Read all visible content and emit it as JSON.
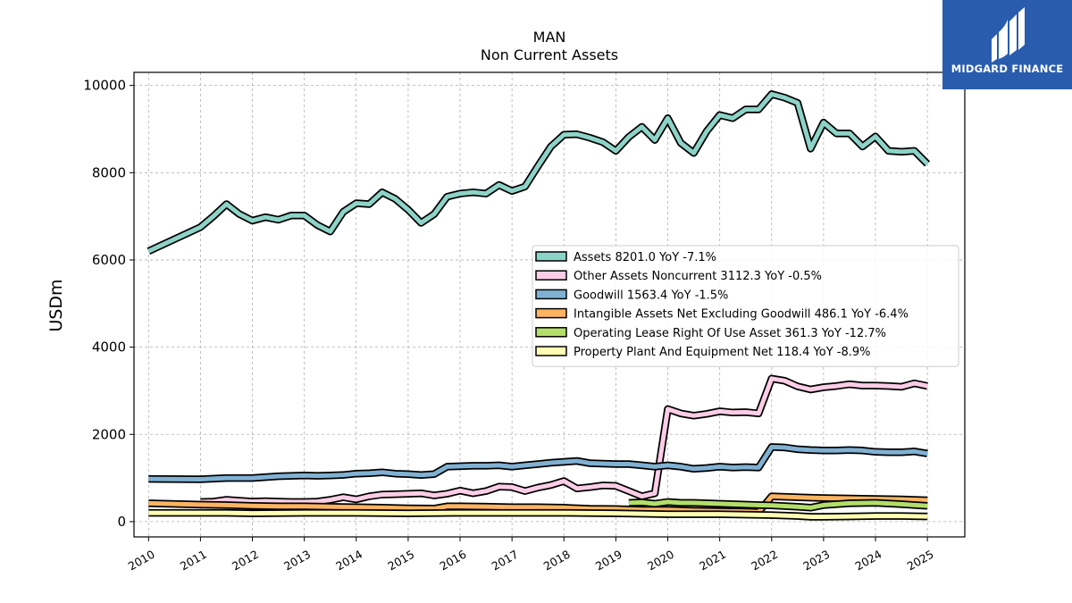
{
  "chart_data": {
    "type": "line",
    "title": "MAN",
    "subtitle": "Non Current  Assets",
    "xlabel": "",
    "ylabel": "USDm",
    "xlim": [
      2009.72,
      2025.72
    ],
    "ylim": [
      -350,
      10300
    ],
    "x_ticks": [
      "2010",
      "2011",
      "2012",
      "2013",
      "2014",
      "2015",
      "2016",
      "2017",
      "2018",
      "2019",
      "2020",
      "2021",
      "2022",
      "2023",
      "2024",
      "2025"
    ],
    "y_ticks": [
      0,
      2000,
      4000,
      6000,
      8000,
      10000
    ],
    "y_tick_labels": [
      "0",
      "2000",
      "4000",
      "6000",
      "8000",
      "10000"
    ],
    "grid": true,
    "legend_position": "center-right",
    "series": [
      {
        "name": "Assets  8201.0 YoY -7.1%",
        "color": "#8dd3c7",
        "points": [
          [
            2010.0,
            6200
          ],
          [
            2011.0,
            6750
          ],
          [
            2011.25,
            7000
          ],
          [
            2011.5,
            7280
          ],
          [
            2011.75,
            7050
          ],
          [
            2012.0,
            6900
          ],
          [
            2012.25,
            6980
          ],
          [
            2012.5,
            6920
          ],
          [
            2012.75,
            7020
          ],
          [
            2013.0,
            7020
          ],
          [
            2013.25,
            6800
          ],
          [
            2013.5,
            6650
          ],
          [
            2013.75,
            7100
          ],
          [
            2014.0,
            7300
          ],
          [
            2014.25,
            7280
          ],
          [
            2014.5,
            7550
          ],
          [
            2014.75,
            7400
          ],
          [
            2015.0,
            7150
          ],
          [
            2015.25,
            6850
          ],
          [
            2015.5,
            7050
          ],
          [
            2015.75,
            7450
          ],
          [
            2016.0,
            7520
          ],
          [
            2016.25,
            7550
          ],
          [
            2016.5,
            7520
          ],
          [
            2016.75,
            7720
          ],
          [
            2017.0,
            7580
          ],
          [
            2017.25,
            7680
          ],
          [
            2017.5,
            8150
          ],
          [
            2017.75,
            8600
          ],
          [
            2018.0,
            8870
          ],
          [
            2018.25,
            8880
          ],
          [
            2018.5,
            8800
          ],
          [
            2018.75,
            8700
          ],
          [
            2019.0,
            8500
          ],
          [
            2019.25,
            8820
          ],
          [
            2019.5,
            9050
          ],
          [
            2019.75,
            8750
          ],
          [
            2020.0,
            9250
          ],
          [
            2020.25,
            8680
          ],
          [
            2020.5,
            8450
          ],
          [
            2020.75,
            8950
          ],
          [
            2021.0,
            9320
          ],
          [
            2021.25,
            9250
          ],
          [
            2021.5,
            9450
          ],
          [
            2021.75,
            9450
          ],
          [
            2022.0,
            9800
          ],
          [
            2022.25,
            9720
          ],
          [
            2022.5,
            9600
          ],
          [
            2022.75,
            8550
          ],
          [
            2023.0,
            9150
          ],
          [
            2023.25,
            8900
          ],
          [
            2023.5,
            8900
          ],
          [
            2023.75,
            8600
          ],
          [
            2024.0,
            8830
          ],
          [
            2024.25,
            8500
          ],
          [
            2024.5,
            8480
          ],
          [
            2024.75,
            8500
          ],
          [
            2025.0,
            8200
          ]
        ]
      },
      {
        "name": "Other Assets Noncurrent  3112.3 YoY -0.5%",
        "color": "#fccde5",
        "points": [
          [
            2011.0,
            450
          ],
          [
            2011.25,
            460
          ],
          [
            2011.5,
            500
          ],
          [
            2011.75,
            480
          ],
          [
            2012.0,
            460
          ],
          [
            2012.25,
            470
          ],
          [
            2012.5,
            460
          ],
          [
            2012.75,
            450
          ],
          [
            2013.0,
            450
          ],
          [
            2013.25,
            460
          ],
          [
            2013.5,
            500
          ],
          [
            2013.75,
            560
          ],
          [
            2014.0,
            510
          ],
          [
            2014.25,
            580
          ],
          [
            2014.5,
            620
          ],
          [
            2014.75,
            630
          ],
          [
            2015.0,
            640
          ],
          [
            2015.25,
            650
          ],
          [
            2015.5,
            600
          ],
          [
            2015.75,
            640
          ],
          [
            2016.0,
            710
          ],
          [
            2016.25,
            650
          ],
          [
            2016.5,
            700
          ],
          [
            2016.75,
            800
          ],
          [
            2017.0,
            790
          ],
          [
            2017.25,
            700
          ],
          [
            2017.5,
            780
          ],
          [
            2017.75,
            840
          ],
          [
            2018.0,
            930
          ],
          [
            2018.25,
            760
          ],
          [
            2018.5,
            790
          ],
          [
            2018.75,
            830
          ],
          [
            2019.0,
            820
          ],
          [
            2019.25,
            700
          ],
          [
            2019.5,
            580
          ],
          [
            2019.75,
            650
          ],
          [
            2020.0,
            2580
          ],
          [
            2020.25,
            2480
          ],
          [
            2020.5,
            2430
          ],
          [
            2020.75,
            2470
          ],
          [
            2021.0,
            2530
          ],
          [
            2021.25,
            2500
          ],
          [
            2021.5,
            2510
          ],
          [
            2021.75,
            2480
          ],
          [
            2022.0,
            3280
          ],
          [
            2022.25,
            3230
          ],
          [
            2022.5,
            3100
          ],
          [
            2022.75,
            3030
          ],
          [
            2023.0,
            3080
          ],
          [
            2023.25,
            3110
          ],
          [
            2023.5,
            3150
          ],
          [
            2023.75,
            3120
          ],
          [
            2024.0,
            3120
          ],
          [
            2024.25,
            3110
          ],
          [
            2024.5,
            3090
          ],
          [
            2024.75,
            3170
          ],
          [
            2025.0,
            3110
          ]
        ]
      },
      {
        "name": "Goodwill  1563.4 YoY -1.5%",
        "color": "#80b1d3",
        "points": [
          [
            2010.0,
            980
          ],
          [
            2011.0,
            970
          ],
          [
            2011.5,
            1000
          ],
          [
            2012.0,
            1000
          ],
          [
            2012.5,
            1040
          ],
          [
            2013.0,
            1060
          ],
          [
            2013.25,
            1050
          ],
          [
            2013.5,
            1060
          ],
          [
            2013.75,
            1070
          ],
          [
            2014.0,
            1100
          ],
          [
            2014.25,
            1110
          ],
          [
            2014.5,
            1130
          ],
          [
            2014.75,
            1100
          ],
          [
            2015.0,
            1090
          ],
          [
            2015.25,
            1070
          ],
          [
            2015.5,
            1090
          ],
          [
            2015.75,
            1260
          ],
          [
            2016.0,
            1270
          ],
          [
            2016.25,
            1280
          ],
          [
            2016.5,
            1280
          ],
          [
            2016.75,
            1290
          ],
          [
            2017.0,
            1260
          ],
          [
            2017.25,
            1290
          ],
          [
            2017.5,
            1320
          ],
          [
            2017.75,
            1350
          ],
          [
            2018.0,
            1370
          ],
          [
            2018.25,
            1390
          ],
          [
            2018.5,
            1340
          ],
          [
            2018.75,
            1330
          ],
          [
            2019.0,
            1320
          ],
          [
            2019.25,
            1320
          ],
          [
            2019.5,
            1290
          ],
          [
            2019.75,
            1260
          ],
          [
            2020.0,
            1290
          ],
          [
            2020.25,
            1260
          ],
          [
            2020.5,
            1210
          ],
          [
            2020.75,
            1230
          ],
          [
            2021.0,
            1260
          ],
          [
            2021.25,
            1240
          ],
          [
            2021.5,
            1250
          ],
          [
            2021.75,
            1240
          ],
          [
            2022.0,
            1710
          ],
          [
            2022.25,
            1700
          ],
          [
            2022.5,
            1660
          ],
          [
            2022.75,
            1640
          ],
          [
            2023.0,
            1630
          ],
          [
            2023.25,
            1630
          ],
          [
            2023.5,
            1640
          ],
          [
            2023.75,
            1630
          ],
          [
            2024.0,
            1600
          ],
          [
            2024.25,
            1590
          ],
          [
            2024.5,
            1590
          ],
          [
            2024.75,
            1610
          ],
          [
            2025.0,
            1560
          ]
        ]
      },
      {
        "name": "Intangible Assets Net Excluding Goodwill  486.1 YoY -6.4%",
        "color": "#fdb462",
        "points": [
          [
            2010.0,
            420
          ],
          [
            2011.0,
            390
          ],
          [
            2011.5,
            380
          ],
          [
            2012.0,
            360
          ],
          [
            2012.5,
            350
          ],
          [
            2013.0,
            350
          ],
          [
            2013.5,
            340
          ],
          [
            2014.0,
            330
          ],
          [
            2014.5,
            320
          ],
          [
            2015.0,
            305
          ],
          [
            2015.5,
            300
          ],
          [
            2015.75,
            350
          ],
          [
            2016.0,
            350
          ],
          [
            2016.5,
            345
          ],
          [
            2017.0,
            330
          ],
          [
            2017.5,
            330
          ],
          [
            2018.0,
            320
          ],
          [
            2018.5,
            295
          ],
          [
            2019.0,
            290
          ],
          [
            2019.5,
            270
          ],
          [
            2020.0,
            270
          ],
          [
            2020.5,
            250
          ],
          [
            2021.0,
            240
          ],
          [
            2021.5,
            230
          ],
          [
            2021.75,
            220
          ],
          [
            2022.0,
            580
          ],
          [
            2022.25,
            570
          ],
          [
            2022.5,
            560
          ],
          [
            2022.75,
            550
          ],
          [
            2023.0,
            540
          ],
          [
            2023.5,
            530
          ],
          [
            2024.0,
            520
          ],
          [
            2024.5,
            510
          ],
          [
            2025.0,
            490
          ]
        ]
      },
      {
        "name": "Operating Lease Right Of Use Asset  361.3 YoY -12.7%",
        "color": "#b3de69",
        "points": [
          [
            2019.25,
            430
          ],
          [
            2019.5,
            440
          ],
          [
            2019.75,
            410
          ],
          [
            2020.0,
            450
          ],
          [
            2020.25,
            430
          ],
          [
            2020.5,
            430
          ],
          [
            2021.0,
            410
          ],
          [
            2021.5,
            390
          ],
          [
            2021.75,
            380
          ],
          [
            2022.0,
            370
          ],
          [
            2022.5,
            340
          ],
          [
            2022.75,
            320
          ],
          [
            2023.0,
            380
          ],
          [
            2023.25,
            400
          ],
          [
            2023.5,
            420
          ],
          [
            2024.0,
            430
          ],
          [
            2024.5,
            400
          ],
          [
            2025.0,
            360
          ]
        ]
      },
      {
        "name": "Property Plant And Equipment Net  118.4 YoY -8.9%",
        "color": "#ffffb3",
        "points": [
          [
            2010.0,
            200
          ],
          [
            2011.0,
            200
          ],
          [
            2011.5,
            200
          ],
          [
            2012.0,
            190
          ],
          [
            2013.0,
            200
          ],
          [
            2014.0,
            200
          ],
          [
            2015.0,
            190
          ],
          [
            2016.0,
            200
          ],
          [
            2017.0,
            200
          ],
          [
            2018.0,
            200
          ],
          [
            2019.0,
            190
          ],
          [
            2020.0,
            170
          ],
          [
            2021.0,
            170
          ],
          [
            2022.0,
            150
          ],
          [
            2022.5,
            130
          ],
          [
            2022.75,
            110
          ],
          [
            2023.0,
            110
          ],
          [
            2023.5,
            120
          ],
          [
            2024.0,
            130
          ],
          [
            2024.5,
            130
          ],
          [
            2025.0,
            120
          ]
        ]
      }
    ]
  },
  "logo": {
    "text": "MIDGARD FINANCE",
    "bg_color": "#2a5cae",
    "icon": "stylized-m-icon"
  }
}
